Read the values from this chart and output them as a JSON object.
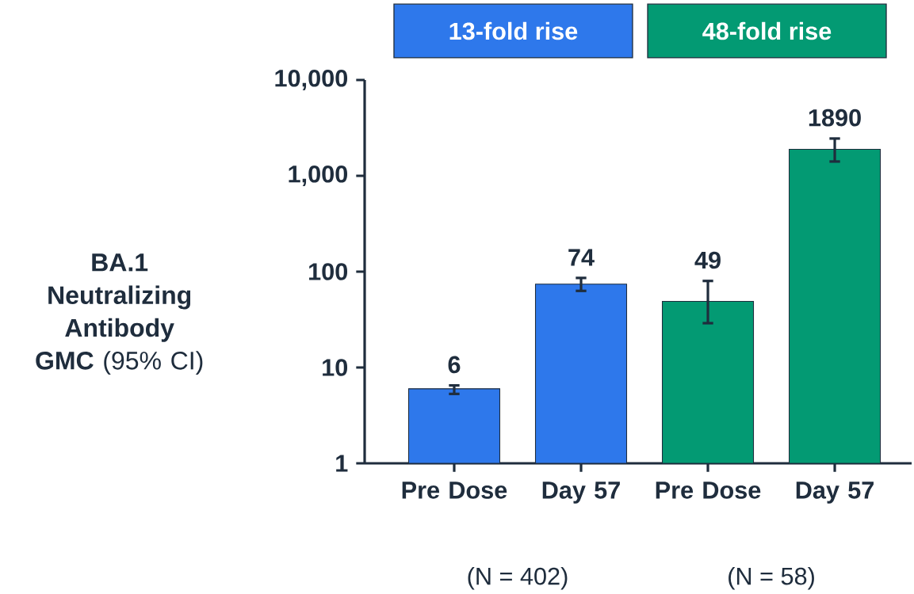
{
  "chart_data": {
    "type": "bar",
    "ylabel": "**BA.1 Neutralizing Antibody GMC** (95% CI)",
    "categories": [
      "Pre Dose",
      "Day 57",
      "Pre Dose",
      "Day 57"
    ],
    "values": [
      6,
      74,
      49,
      1890
    ],
    "colors": [
      "#2e78eb",
      "#2e78eb",
      "#039a73",
      "#039a73"
    ],
    "errors": [
      [
        5.3,
        6.5
      ],
      [
        63,
        86
      ],
      [
        29,
        80
      ],
      [
        1410,
        2450
      ]
    ],
    "data_labels": true,
    "log": true,
    "ylim": [
      1,
      10000
    ],
    "yticks": [
      1,
      10,
      100,
      {
        "value": 1000,
        "label": "1,000"
      },
      {
        "value": 10000,
        "label": "10,000"
      }
    ],
    "annotations": [
      "13-fold rise",
      "48-fold rise",
      "(N = 402)",
      "(N = 58)"
    ]
  }
}
